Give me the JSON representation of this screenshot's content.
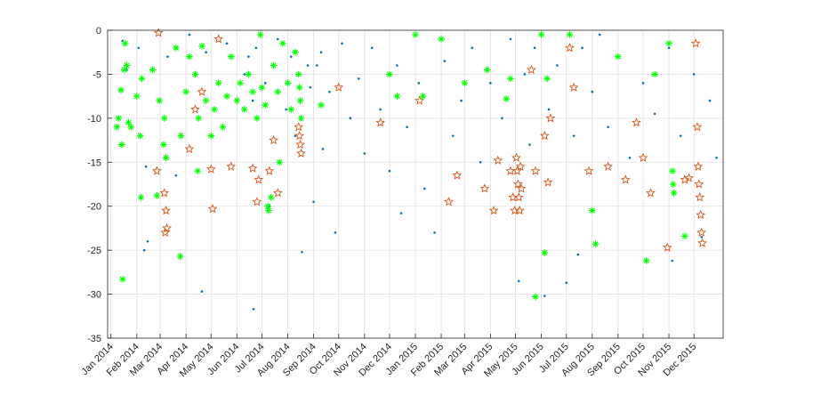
{
  "chart_data": {
    "type": "scatter",
    "title": "",
    "xlabel": "",
    "ylabel": "",
    "ylim": [
      -35,
      0
    ],
    "yticks": [
      0,
      -5,
      -10,
      -15,
      -20,
      -25,
      -30,
      -35
    ],
    "xlim": [
      "2013-12-28",
      "2016-01-05"
    ],
    "x_tick_labels": [
      "Jan 2014",
      "Feb 2014",
      "Mar 2014",
      "Apr 2014",
      "May 2014",
      "Jun 2014",
      "Jul 2014",
      "Aug 2014",
      "Sep 2014",
      "Oct 2014",
      "Nov 2014",
      "Dec 2014",
      "Jan 2015",
      "Feb 2015",
      "Mar 2015",
      "Apr 2015",
      "May 2015",
      "Jun 2015",
      "Jul 2015",
      "Aug 2015",
      "Sep 2015",
      "Oct 2015",
      "Nov 2015",
      "Dec 2015"
    ],
    "x_tick_dates": [
      "2014-01-01",
      "2014-02-01",
      "2014-03-01",
      "2014-04-01",
      "2014-05-01",
      "2014-06-01",
      "2014-07-01",
      "2014-08-01",
      "2014-09-01",
      "2014-10-01",
      "2014-11-01",
      "2014-12-01",
      "2015-01-01",
      "2015-02-01",
      "2015-03-01",
      "2015-04-01",
      "2015-05-01",
      "2015-06-01",
      "2015-07-01",
      "2015-08-01",
      "2015-09-01",
      "2015-10-01",
      "2015-11-01",
      "2015-12-01"
    ],
    "grid": true,
    "series": [
      {
        "color": "#0072BD",
        "marker": "dot",
        "points": [
          [
            "2014-01-15",
            -1.2
          ],
          [
            "2014-01-20",
            -4.5
          ],
          [
            "2014-02-03",
            -2.0
          ],
          [
            "2014-02-10",
            -25.0
          ],
          [
            "2014-02-14",
            -24.0
          ],
          [
            "2014-02-12",
            -15.5
          ],
          [
            "2014-03-10",
            -3.0
          ],
          [
            "2014-03-20",
            -16.5
          ],
          [
            "2014-04-05",
            -0.5
          ],
          [
            "2014-04-20",
            -29.7
          ],
          [
            "2014-04-25",
            -2.5
          ],
          [
            "2014-05-02",
            -12.0
          ],
          [
            "2014-05-20",
            -1.5
          ],
          [
            "2014-06-10",
            -5.0
          ],
          [
            "2014-06-15",
            -3.0
          ],
          [
            "2014-06-20",
            -8.0
          ],
          [
            "2014-06-21",
            -31.7
          ],
          [
            "2014-06-24",
            -2.0
          ],
          [
            "2014-07-05",
            -6.0
          ],
          [
            "2014-07-10",
            -20.0
          ],
          [
            "2014-07-20",
            -1.0
          ],
          [
            "2014-07-30",
            -9.0
          ],
          [
            "2014-08-05",
            -3.0
          ],
          [
            "2014-08-10",
            -12.0
          ],
          [
            "2014-08-18",
            -25.2
          ],
          [
            "2014-08-25",
            -4.0
          ],
          [
            "2014-08-28",
            -6.5
          ],
          [
            "2014-09-01",
            -19.5
          ],
          [
            "2014-09-05",
            -4.0
          ],
          [
            "2014-09-10",
            -2.5
          ],
          [
            "2014-09-12",
            -13.5
          ],
          [
            "2014-09-20",
            -7.0
          ],
          [
            "2014-09-27",
            -23.0
          ],
          [
            "2014-10-05",
            -1.5
          ],
          [
            "2014-10-15",
            -10.0
          ],
          [
            "2014-10-25",
            -5.5
          ],
          [
            "2014-11-01",
            -14.0
          ],
          [
            "2014-11-10",
            -2.0
          ],
          [
            "2014-11-20",
            -9.0
          ],
          [
            "2014-12-01",
            -16.0
          ],
          [
            "2014-12-10",
            -4.0
          ],
          [
            "2014-12-15",
            -20.8
          ],
          [
            "2014-12-22",
            -11.0
          ],
          [
            "2015-01-05",
            -6.0
          ],
          [
            "2015-01-12",
            -18.0
          ],
          [
            "2015-01-24",
            -23.0
          ],
          [
            "2015-02-05",
            -3.5
          ],
          [
            "2015-02-15",
            -12.0
          ],
          [
            "2015-02-25",
            -8.0
          ],
          [
            "2015-03-10",
            -2.0
          ],
          [
            "2015-03-20",
            -15.0
          ],
          [
            "2015-04-01",
            -6.0
          ],
          [
            "2015-04-15",
            -10.0
          ],
          [
            "2015-04-25",
            -1.0
          ],
          [
            "2015-05-05",
            -28.5
          ],
          [
            "2015-05-12",
            -5.0
          ],
          [
            "2015-05-18",
            -13.0
          ],
          [
            "2015-05-24",
            -2.0
          ],
          [
            "2015-06-05",
            -30.2
          ],
          [
            "2015-06-10",
            -9.0
          ],
          [
            "2015-06-20",
            -4.0
          ],
          [
            "2015-07-01",
            -28.7
          ],
          [
            "2015-07-10",
            -12.0
          ],
          [
            "2015-07-15",
            -25.5
          ],
          [
            "2015-07-20",
            -2.0
          ],
          [
            "2015-08-01",
            -7.0
          ],
          [
            "2015-08-10",
            -0.5
          ],
          [
            "2015-08-20",
            -11.0
          ],
          [
            "2015-09-01",
            -3.0
          ],
          [
            "2015-09-15",
            -14.5
          ],
          [
            "2015-10-01",
            -6.0
          ],
          [
            "2015-10-15",
            -9.5
          ],
          [
            "2015-11-01",
            -2.0
          ],
          [
            "2015-11-05",
            -26.2
          ],
          [
            "2015-11-15",
            -12.0
          ],
          [
            "2015-12-01",
            -5.0
          ],
          [
            "2015-12-10",
            -23.5
          ],
          [
            "2015-12-20",
            -8.0
          ],
          [
            "2015-12-28",
            -14.5
          ]
        ]
      },
      {
        "color": "#D95319",
        "marker": "star",
        "points": [
          [
            "2014-02-27",
            -0.3
          ],
          [
            "2014-02-25",
            -16.0
          ],
          [
            "2014-03-06",
            -18.5
          ],
          [
            "2014-03-08",
            -20.5
          ],
          [
            "2014-03-09",
            -22.5
          ],
          [
            "2014-03-07",
            -23.0
          ],
          [
            "2014-04-05",
            -13.5
          ],
          [
            "2014-04-12",
            -9.0
          ],
          [
            "2014-04-20",
            -7.0
          ],
          [
            "2014-05-01",
            -15.8
          ],
          [
            "2014-05-03",
            -20.3
          ],
          [
            "2014-05-10",
            -1.0
          ],
          [
            "2014-05-25",
            -15.5
          ],
          [
            "2014-06-20",
            -15.7
          ],
          [
            "2014-06-25",
            -19.5
          ],
          [
            "2014-06-27",
            -17.0
          ],
          [
            "2014-07-10",
            -16.0
          ],
          [
            "2014-07-15",
            -12.5
          ],
          [
            "2014-07-20",
            -18.5
          ],
          [
            "2014-08-14",
            -11.0
          ],
          [
            "2014-08-15",
            -12.0
          ],
          [
            "2014-08-16",
            -13.0
          ],
          [
            "2014-08-17",
            -14.0
          ],
          [
            "2014-10-01",
            -6.5
          ],
          [
            "2014-11-20",
            -10.5
          ],
          [
            "2015-01-06",
            -8.0
          ],
          [
            "2015-02-10",
            -19.5
          ],
          [
            "2015-02-20",
            -16.5
          ],
          [
            "2015-03-25",
            -18.0
          ],
          [
            "2015-04-05",
            -20.5
          ],
          [
            "2015-04-10",
            -14.8
          ],
          [
            "2015-04-25",
            -16.0
          ],
          [
            "2015-04-28",
            -19.0
          ],
          [
            "2015-04-30",
            -20.5
          ],
          [
            "2015-05-02",
            -14.5
          ],
          [
            "2015-05-03",
            -16.0
          ],
          [
            "2015-05-04",
            -17.5
          ],
          [
            "2015-05-05",
            -19.0
          ],
          [
            "2015-05-06",
            -20.5
          ],
          [
            "2015-05-07",
            -15.5
          ],
          [
            "2015-05-08",
            -18.0
          ],
          [
            "2015-05-20",
            -4.5
          ],
          [
            "2015-05-25",
            -16.0
          ],
          [
            "2015-06-05",
            -12.0
          ],
          [
            "2015-06-09",
            -17.3
          ],
          [
            "2015-06-12",
            -10.0
          ],
          [
            "2015-07-05",
            -2.0
          ],
          [
            "2015-07-10",
            -6.5
          ],
          [
            "2015-07-28",
            -16.0
          ],
          [
            "2015-08-20",
            -15.5
          ],
          [
            "2015-09-10",
            -17.0
          ],
          [
            "2015-09-23",
            -10.5
          ],
          [
            "2015-10-01",
            -14.5
          ],
          [
            "2015-10-10",
            -18.5
          ],
          [
            "2015-10-30",
            -24.7
          ],
          [
            "2015-11-20",
            -17.0
          ],
          [
            "2015-11-25",
            -16.8
          ],
          [
            "2015-12-03",
            -1.5
          ],
          [
            "2015-12-05",
            -11.0
          ],
          [
            "2015-12-06",
            -15.5
          ],
          [
            "2015-12-07",
            -17.5
          ],
          [
            "2015-12-08",
            -19.0
          ],
          [
            "2015-12-09",
            -21.0
          ],
          [
            "2015-12-10",
            -23.0
          ],
          [
            "2015-12-11",
            -24.2
          ]
        ]
      },
      {
        "color": "#00FF00",
        "marker": "asterisk",
        "points": [
          [
            "2014-01-08",
            -11.0
          ],
          [
            "2014-01-10",
            -10.0
          ],
          [
            "2014-01-13",
            -6.8
          ],
          [
            "2014-01-14",
            -13.0
          ],
          [
            "2014-01-15",
            -28.3
          ],
          [
            "2014-01-17",
            -4.5
          ],
          [
            "2014-01-18",
            -1.5
          ],
          [
            "2014-01-20",
            -4.0
          ],
          [
            "2014-01-22",
            -10.5
          ],
          [
            "2014-01-25",
            -11.0
          ],
          [
            "2014-02-01",
            -7.5
          ],
          [
            "2014-02-05",
            -12.0
          ],
          [
            "2014-02-06",
            -19.0
          ],
          [
            "2014-02-07",
            -5.5
          ],
          [
            "2014-02-20",
            -4.5
          ],
          [
            "2014-02-25",
            -18.8
          ],
          [
            "2014-02-28",
            -8.0
          ],
          [
            "2014-03-05",
            -13.0
          ],
          [
            "2014-03-06",
            -10.0
          ],
          [
            "2014-03-08",
            -14.5
          ],
          [
            "2014-03-20",
            -2.0
          ],
          [
            "2014-03-25",
            -25.7
          ],
          [
            "2014-03-26",
            -12.0
          ],
          [
            "2014-04-01",
            -7.0
          ],
          [
            "2014-04-05",
            -3.0
          ],
          [
            "2014-04-12",
            -5.0
          ],
          [
            "2014-04-15",
            -16.0
          ],
          [
            "2014-04-16",
            -10.0
          ],
          [
            "2014-04-20",
            -1.8
          ],
          [
            "2014-04-25",
            -8.0
          ],
          [
            "2014-05-01",
            -12.0
          ],
          [
            "2014-05-05",
            -9.0
          ],
          [
            "2014-05-10",
            -6.0
          ],
          [
            "2014-05-15",
            -11.0
          ],
          [
            "2014-05-20",
            -7.5
          ],
          [
            "2014-05-25",
            -3.0
          ],
          [
            "2014-06-01",
            -8.0
          ],
          [
            "2014-06-05",
            -6.0
          ],
          [
            "2014-06-10",
            -9.0
          ],
          [
            "2014-06-15",
            -5.0
          ],
          [
            "2014-06-20",
            -7.0
          ],
          [
            "2014-06-25",
            -10.0
          ],
          [
            "2014-06-29",
            -0.5
          ],
          [
            "2014-07-01",
            -6.5
          ],
          [
            "2014-07-05",
            -8.5
          ],
          [
            "2014-07-08",
            -20.0
          ],
          [
            "2014-07-09",
            -20.5
          ],
          [
            "2014-07-12",
            -19.0
          ],
          [
            "2014-07-15",
            -4.0
          ],
          [
            "2014-07-20",
            -7.0
          ],
          [
            "2014-07-22",
            -15.0
          ],
          [
            "2014-07-26",
            -1.5
          ],
          [
            "2014-08-01",
            -6.0
          ],
          [
            "2014-08-05",
            -9.0
          ],
          [
            "2014-08-10",
            -2.5
          ],
          [
            "2014-08-14",
            -5.0
          ],
          [
            "2014-08-15",
            -6.5
          ],
          [
            "2014-08-16",
            -8.0
          ],
          [
            "2014-08-17",
            -10.0
          ],
          [
            "2014-09-10",
            -8.5
          ],
          [
            "2014-12-01",
            -5.0
          ],
          [
            "2014-12-10",
            -7.5
          ],
          [
            "2015-01-01",
            -0.5
          ],
          [
            "2015-01-10",
            -7.5
          ],
          [
            "2015-02-01",
            -1.0
          ],
          [
            "2015-03-01",
            -6.0
          ],
          [
            "2015-03-28",
            -4.5
          ],
          [
            "2015-04-20",
            -7.8
          ],
          [
            "2015-04-25",
            -5.5
          ],
          [
            "2015-05-25",
            -30.3
          ],
          [
            "2015-06-01",
            -0.5
          ],
          [
            "2015-06-05",
            -25.3
          ],
          [
            "2015-06-08",
            -5.5
          ],
          [
            "2015-07-05",
            -0.5
          ],
          [
            "2015-08-01",
            -20.5
          ],
          [
            "2015-08-05",
            -24.3
          ],
          [
            "2015-09-01",
            -3.0
          ],
          [
            "2015-10-05",
            -26.2
          ],
          [
            "2015-10-15",
            -5.0
          ],
          [
            "2015-11-01",
            -1.5
          ],
          [
            "2015-11-05",
            -16.0
          ],
          [
            "2015-11-06",
            -17.5
          ],
          [
            "2015-11-07",
            -18.5
          ],
          [
            "2015-11-20",
            -23.4
          ]
        ]
      }
    ]
  }
}
